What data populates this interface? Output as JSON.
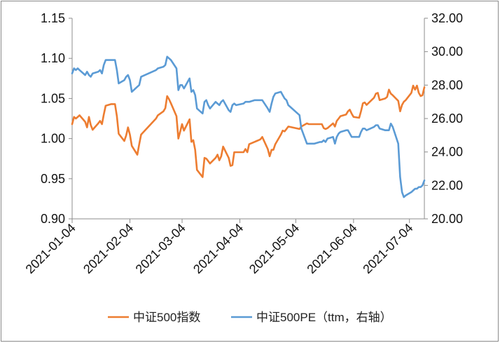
{
  "chart_data": {
    "type": "line",
    "title": "",
    "xlabel": "",
    "ylabel": "",
    "x_tick_labels": [
      "2021-01-04",
      "2021-02-04",
      "2021-03-04",
      "2021-04-04",
      "2021-05-04",
      "2021-06-04",
      "2021-07-04"
    ],
    "x_range": [
      "2021-01-04",
      "2021-07-12"
    ],
    "y_left": {
      "ticks": [
        "0.90",
        "0.95",
        "1.00",
        "1.05",
        "1.10",
        "1.15"
      ],
      "range": [
        0.9,
        1.15
      ]
    },
    "y_right": {
      "ticks": [
        "20.00",
        "22.00",
        "24.00",
        "26.00",
        "28.00",
        "30.00",
        "32.00"
      ],
      "range": [
        20.0,
        32.0
      ]
    },
    "grid": false,
    "legend_position": "bottom",
    "series": [
      {
        "name": "中证500指数",
        "axis": "left",
        "color": "#ED7D31",
        "points": [
          [
            "2021-01-04",
            1.018
          ],
          [
            "2021-01-05",
            1.027
          ],
          [
            "2021-01-06",
            1.025
          ],
          [
            "2021-01-07",
            1.027
          ],
          [
            "2021-01-08",
            1.029
          ],
          [
            "2021-01-11",
            1.021
          ],
          [
            "2021-01-12",
            1.014
          ],
          [
            "2021-01-13",
            1.027
          ],
          [
            "2021-01-14",
            1.017
          ],
          [
            "2021-01-15",
            1.011
          ],
          [
            "2021-01-18",
            1.019
          ],
          [
            "2021-01-19",
            1.022
          ],
          [
            "2021-01-20",
            1.018
          ],
          [
            "2021-01-21",
            1.03
          ],
          [
            "2021-01-22",
            1.041
          ],
          [
            "2021-01-25",
            1.043
          ],
          [
            "2021-01-26",
            1.043
          ],
          [
            "2021-01-27",
            1.043
          ],
          [
            "2021-01-28",
            1.028
          ],
          [
            "2021-01-29",
            1.006
          ],
          [
            "2021-02-01",
            0.997
          ],
          [
            "2021-02-02",
            1.004
          ],
          [
            "2021-02-03",
            1.014
          ],
          [
            "2021-02-04",
            1.005
          ],
          [
            "2021-02-05",
            0.991
          ],
          [
            "2021-02-08",
            0.98
          ],
          [
            "2021-02-09",
            0.993
          ],
          [
            "2021-02-10",
            1.005
          ],
          [
            "2021-02-18",
            1.025
          ],
          [
            "2021-02-19",
            1.029
          ],
          [
            "2021-02-22",
            1.034
          ],
          [
            "2021-02-23",
            1.038
          ],
          [
            "2021-02-24",
            1.053
          ],
          [
            "2021-02-25",
            1.049
          ],
          [
            "2021-02-26",
            1.044
          ],
          [
            "2021-03-01",
            1.028
          ],
          [
            "2021-03-02",
            1.0
          ],
          [
            "2021-03-03",
            1.009
          ],
          [
            "2021-03-04",
            1.018
          ],
          [
            "2021-03-05",
            1.01
          ],
          [
            "2021-03-08",
            1.024
          ],
          [
            "2021-03-09",
            0.996
          ],
          [
            "2021-03-10",
            0.998
          ],
          [
            "2021-03-11",
            0.986
          ],
          [
            "2021-03-12",
            0.961
          ],
          [
            "2021-03-15",
            0.952
          ],
          [
            "2021-03-16",
            0.976
          ],
          [
            "2021-03-17",
            0.975
          ],
          [
            "2021-03-18",
            0.972
          ],
          [
            "2021-03-19",
            0.969
          ],
          [
            "2021-03-22",
            0.976
          ],
          [
            "2021-03-23",
            0.98
          ],
          [
            "2021-03-24",
            0.973
          ],
          [
            "2021-03-25",
            0.978
          ],
          [
            "2021-03-26",
            0.99
          ],
          [
            "2021-03-29",
            0.976
          ],
          [
            "2021-03-30",
            0.966
          ],
          [
            "2021-03-31",
            0.967
          ],
          [
            "2021-04-01",
            0.983
          ],
          [
            "2021-04-02",
            0.983
          ],
          [
            "2021-04-06",
            0.983
          ],
          [
            "2021-04-07",
            0.987
          ],
          [
            "2021-04-08",
            0.983
          ],
          [
            "2021-04-09",
            0.993
          ],
          [
            "2021-04-12",
            0.996
          ],
          [
            "2021-04-13",
            0.997
          ],
          [
            "2021-04-14",
            0.998
          ],
          [
            "2021-04-15",
            0.999
          ],
          [
            "2021-04-16",
            1.002
          ],
          [
            "2021-04-19",
            0.987
          ],
          [
            "2021-04-20",
            0.978
          ],
          [
            "2021-04-21",
            0.986
          ],
          [
            "2021-04-22",
            0.986
          ],
          [
            "2021-04-23",
            0.993
          ],
          [
            "2021-04-26",
            1.005
          ],
          [
            "2021-04-27",
            1.01
          ],
          [
            "2021-04-28",
            1.009
          ],
          [
            "2021-04-29",
            1.012
          ],
          [
            "2021-04-30",
            1.015
          ],
          [
            "2021-05-06",
            1.012
          ],
          [
            "2021-05-07",
            1.015
          ],
          [
            "2021-05-10",
            1.019
          ],
          [
            "2021-05-11",
            1.018
          ],
          [
            "2021-05-12",
            1.018
          ],
          [
            "2021-05-13",
            1.018
          ],
          [
            "2021-05-14",
            1.018
          ],
          [
            "2021-05-17",
            1.018
          ],
          [
            "2021-05-18",
            1.018
          ],
          [
            "2021-05-19",
            1.013
          ],
          [
            "2021-05-20",
            1.012
          ],
          [
            "2021-05-21",
            1.013
          ],
          [
            "2021-05-24",
            1.019
          ],
          [
            "2021-05-25",
            1.015
          ],
          [
            "2021-05-26",
            1.022
          ],
          [
            "2021-05-27",
            1.025
          ],
          [
            "2021-05-28",
            1.028
          ],
          [
            "2021-05-31",
            1.03
          ],
          [
            "2021-06-01",
            1.034
          ],
          [
            "2021-06-02",
            1.036
          ],
          [
            "2021-06-03",
            1.031
          ],
          [
            "2021-06-04",
            1.027
          ],
          [
            "2021-06-07",
            1.026
          ],
          [
            "2021-06-08",
            1.034
          ],
          [
            "2021-06-09",
            1.044
          ],
          [
            "2021-06-10",
            1.045
          ],
          [
            "2021-06-11",
            1.042
          ],
          [
            "2021-06-15",
            1.051
          ],
          [
            "2021-06-16",
            1.056
          ],
          [
            "2021-06-17",
            1.057
          ],
          [
            "2021-06-18",
            1.048
          ],
          [
            "2021-06-21",
            1.05
          ],
          [
            "2021-06-22",
            1.052
          ],
          [
            "2021-06-23",
            1.061
          ],
          [
            "2021-06-24",
            1.056
          ],
          [
            "2021-06-25",
            1.054
          ],
          [
            "2021-06-28",
            1.047
          ],
          [
            "2021-06-29",
            1.034
          ],
          [
            "2021-06-30",
            1.042
          ],
          [
            "2021-07-01",
            1.046
          ],
          [
            "2021-07-02",
            1.048
          ],
          [
            "2021-07-05",
            1.057
          ],
          [
            "2021-07-06",
            1.066
          ],
          [
            "2021-07-07",
            1.061
          ],
          [
            "2021-07-08",
            1.066
          ],
          [
            "2021-07-09",
            1.057
          ],
          [
            "2021-07-10",
            1.053
          ],
          [
            "2021-07-11",
            1.054
          ],
          [
            "2021-07-12",
            1.064
          ]
        ]
      },
      {
        "name": "中证500PE（ttm，右轴）",
        "axis": "right",
        "color": "#5B9BD5",
        "points": [
          [
            "2021-01-04",
            28.7
          ],
          [
            "2021-01-05",
            29.0
          ],
          [
            "2021-01-06",
            28.9
          ],
          [
            "2021-01-07",
            29.0
          ],
          [
            "2021-01-08",
            28.9
          ],
          [
            "2021-01-11",
            28.6
          ],
          [
            "2021-01-12",
            28.8
          ],
          [
            "2021-01-13",
            28.6
          ],
          [
            "2021-01-14",
            28.5
          ],
          [
            "2021-01-15",
            28.7
          ],
          [
            "2021-01-18",
            28.8
          ],
          [
            "2021-01-19",
            28.9
          ],
          [
            "2021-01-20",
            28.7
          ],
          [
            "2021-01-21",
            29.2
          ],
          [
            "2021-01-22",
            29.5
          ],
          [
            "2021-01-25",
            29.5
          ],
          [
            "2021-01-26",
            29.5
          ],
          [
            "2021-01-27",
            29.5
          ],
          [
            "2021-01-28",
            28.9
          ],
          [
            "2021-01-29",
            28.1
          ],
          [
            "2021-02-01",
            28.3
          ],
          [
            "2021-02-02",
            28.5
          ],
          [
            "2021-02-03",
            28.6
          ],
          [
            "2021-02-04",
            28.3
          ],
          [
            "2021-02-05",
            27.6
          ],
          [
            "2021-02-08",
            27.9
          ],
          [
            "2021-02-09",
            28.0
          ],
          [
            "2021-02-10",
            28.5
          ],
          [
            "2021-02-18",
            28.9
          ],
          [
            "2021-02-19",
            29.0
          ],
          [
            "2021-02-22",
            29.1
          ],
          [
            "2021-02-23",
            29.2
          ],
          [
            "2021-02-24",
            29.7
          ],
          [
            "2021-02-25",
            29.6
          ],
          [
            "2021-02-26",
            29.5
          ],
          [
            "2021-03-01",
            29.0
          ],
          [
            "2021-03-02",
            27.7
          ],
          [
            "2021-03-03",
            28.0
          ],
          [
            "2021-03-04",
            28.0
          ],
          [
            "2021-03-05",
            27.8
          ],
          [
            "2021-03-08",
            28.4
          ],
          [
            "2021-03-09",
            27.6
          ],
          [
            "2021-03-10",
            27.7
          ],
          [
            "2021-03-11",
            27.4
          ],
          [
            "2021-03-12",
            26.6
          ],
          [
            "2021-03-15",
            26.3
          ],
          [
            "2021-03-16",
            27.0
          ],
          [
            "2021-03-17",
            27.1
          ],
          [
            "2021-03-18",
            26.8
          ],
          [
            "2021-03-19",
            26.6
          ],
          [
            "2021-03-22",
            27.0
          ],
          [
            "2021-03-23",
            26.9
          ],
          [
            "2021-03-24",
            26.8
          ],
          [
            "2021-03-25",
            27.0
          ],
          [
            "2021-03-26",
            27.1
          ],
          [
            "2021-03-29",
            26.5
          ],
          [
            "2021-03-30",
            26.4
          ],
          [
            "2021-03-31",
            26.8
          ],
          [
            "2021-04-01",
            26.9
          ],
          [
            "2021-04-02",
            26.8
          ],
          [
            "2021-04-06",
            26.9
          ],
          [
            "2021-04-07",
            27.0
          ],
          [
            "2021-04-08",
            27.0
          ],
          [
            "2021-04-09",
            27.0
          ],
          [
            "2021-04-12",
            27.1
          ],
          [
            "2021-04-13",
            27.1
          ],
          [
            "2021-04-14",
            27.1
          ],
          [
            "2021-04-15",
            27.1
          ],
          [
            "2021-04-16",
            27.1
          ],
          [
            "2021-04-19",
            26.6
          ],
          [
            "2021-04-20",
            26.4
          ],
          [
            "2021-04-21",
            26.9
          ],
          [
            "2021-04-22",
            27.3
          ],
          [
            "2021-04-23",
            27.5
          ],
          [
            "2021-04-26",
            27.6
          ],
          [
            "2021-04-27",
            27.4
          ],
          [
            "2021-04-28",
            27.2
          ],
          [
            "2021-04-29",
            27.1
          ],
          [
            "2021-04-30",
            26.8
          ],
          [
            "2021-05-06",
            26.2
          ],
          [
            "2021-05-07",
            25.4
          ],
          [
            "2021-05-10",
            24.5
          ],
          [
            "2021-05-11",
            24.5
          ],
          [
            "2021-05-12",
            24.5
          ],
          [
            "2021-05-13",
            24.5
          ],
          [
            "2021-05-14",
            24.5
          ],
          [
            "2021-05-17",
            24.6
          ],
          [
            "2021-05-18",
            24.6
          ],
          [
            "2021-05-19",
            24.7
          ],
          [
            "2021-05-20",
            24.6
          ],
          [
            "2021-05-21",
            24.8
          ],
          [
            "2021-05-24",
            24.9
          ],
          [
            "2021-05-25",
            24.5
          ],
          [
            "2021-05-26",
            24.9
          ],
          [
            "2021-05-27",
            25.1
          ],
          [
            "2021-05-28",
            25.2
          ],
          [
            "2021-05-31",
            25.3
          ],
          [
            "2021-06-01",
            25.3
          ],
          [
            "2021-06-02",
            25.1
          ],
          [
            "2021-06-03",
            24.9
          ],
          [
            "2021-06-04",
            24.9
          ],
          [
            "2021-06-07",
            24.9
          ],
          [
            "2021-06-08",
            25.2
          ],
          [
            "2021-06-09",
            25.4
          ],
          [
            "2021-06-10",
            25.4
          ],
          [
            "2021-06-11",
            25.3
          ],
          [
            "2021-06-15",
            25.5
          ],
          [
            "2021-06-16",
            25.6
          ],
          [
            "2021-06-17",
            25.6
          ],
          [
            "2021-06-18",
            25.4
          ],
          [
            "2021-06-21",
            25.3
          ],
          [
            "2021-06-22",
            25.3
          ],
          [
            "2021-06-23",
            25.3
          ],
          [
            "2021-06-24",
            25.7
          ],
          [
            "2021-06-25",
            25.5
          ],
          [
            "2021-06-28",
            24.5
          ],
          [
            "2021-06-29",
            22.5
          ],
          [
            "2021-06-30",
            21.6
          ],
          [
            "2021-07-01",
            21.3
          ],
          [
            "2021-07-02",
            21.4
          ],
          [
            "2021-07-05",
            21.6
          ],
          [
            "2021-07-06",
            21.7
          ],
          [
            "2021-07-07",
            21.8
          ],
          [
            "2021-07-08",
            21.8
          ],
          [
            "2021-07-09",
            21.9
          ],
          [
            "2021-07-10",
            21.9
          ],
          [
            "2021-07-11",
            22.0
          ],
          [
            "2021-07-12",
            22.3
          ]
        ]
      }
    ]
  }
}
